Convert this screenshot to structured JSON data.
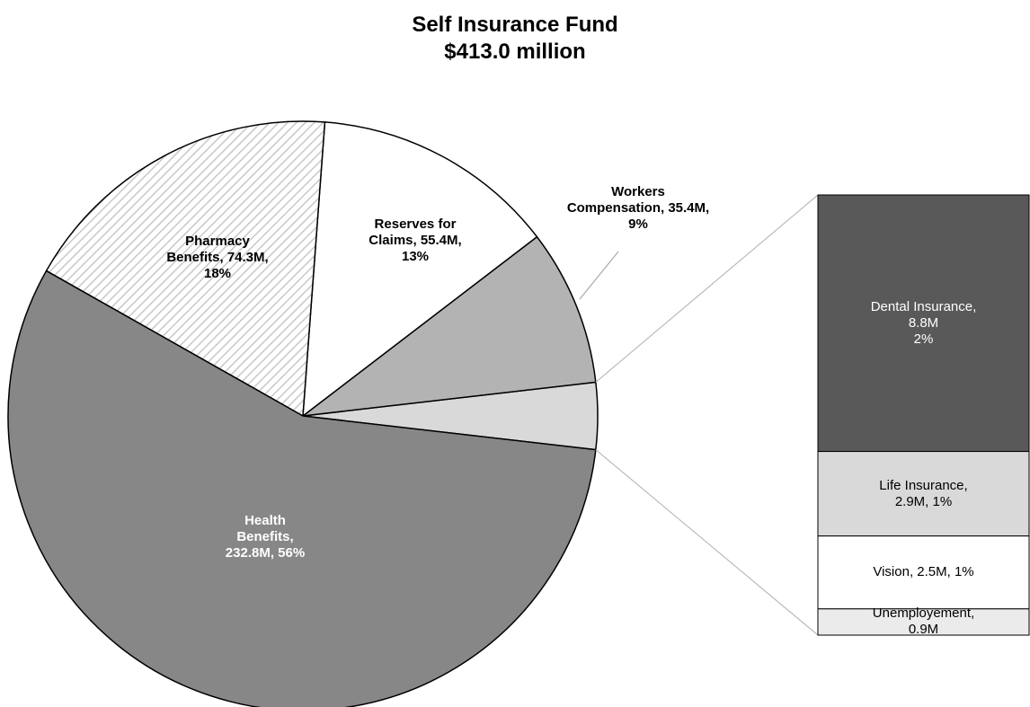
{
  "chart_data": {
    "type": "pie",
    "title": "Self Insurance Fund",
    "subtitle": "$413.0 million",
    "labels": [
      "Health\nBenefits,\n232.8M, 56%",
      "Pharmacy\nBenefits, 74.3M,\n18%",
      "Reserves for\nClaims, 55.4M,\n13%",
      "Workers\nCompensation, 35.4M,\n9%"
    ],
    "values": [
      232.8,
      74.3,
      55.4,
      35.4
    ],
    "colors": [
      "#878787",
      "#ffffff",
      "#ffffff",
      "#b3b3b3"
    ],
    "patterns": [
      null,
      "diagonal",
      null,
      null
    ],
    "breakout": {
      "color": "#d9d9d9",
      "labels": [
        "Dental Insurance, 8.8M\n2%",
        "Life Insurance,\n2.9M, 1%",
        "Vision, 2.5M, 1%",
        "Unemployement, 0.9M"
      ],
      "values": [
        8.8,
        2.9,
        2.5,
        0.9
      ],
      "colors": [
        "#595959",
        "#d9d9d9",
        "#ffffff",
        "#ebebeb"
      ]
    }
  }
}
